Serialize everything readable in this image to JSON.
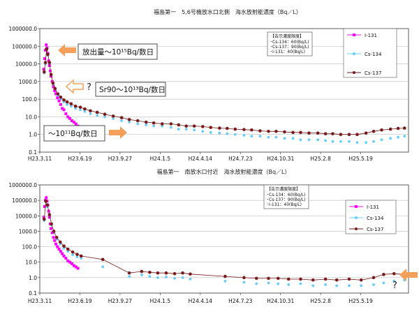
{
  "chart_data": [
    {
      "type": "scatter",
      "title": "福島第一　5,6号機放水口北側　海水放射能濃度（Bq／L）",
      "yscale": "log",
      "ylim": [
        0.1,
        1000000.0
      ],
      "y_ticks": [
        "1000000.0",
        "100000.0",
        "10000.0",
        "1000.0",
        "100.0",
        "10.0",
        "1.0",
        "0.1"
      ],
      "xlim": [
        "2011-03-11",
        "2013-09-15"
      ],
      "x_ticks": [
        {
          "label": "H23.3.11",
          "date": "2011-03-11"
        },
        {
          "label": "H23.6.19",
          "date": "2011-06-19"
        },
        {
          "label": "H23.9.27",
          "date": "2011-09-27"
        },
        {
          "label": "H24.1.5",
          "date": "2012-01-05"
        },
        {
          "label": "H24.4.14",
          "date": "2012-04-14"
        },
        {
          "label": "H24.7.23",
          "date": "2012-07-23"
        },
        {
          "label": "H24.10.31",
          "date": "2012-10-31"
        },
        {
          "label": "H25.2.8",
          "date": "2013-02-08"
        },
        {
          "label": "H25.5.19",
          "date": "2013-05-19"
        }
      ],
      "grid": "horizontal",
      "legend": {
        "position": "top-right",
        "entries": [
          "I-131",
          "Cs-134",
          "Cs-137"
        ]
      },
      "limits_box": {
        "title": "【告示濃度限度】",
        "lines": [
          "･Cs-134：60(Bq/L)",
          "･Cs-137：90(Bq/L)",
          "･I-131：40(Bq/L)"
        ]
      },
      "annotations": [
        {
          "text": "放出量～10¹⁵Bq/数日",
          "arrow": "orange-left"
        },
        {
          "text": "Sr90～10¹³Bq/数日",
          "arrow": "outline-left",
          "question": "?"
        },
        {
          "text": "～10¹¹Bq/数日",
          "arrow": "orange-right"
        }
      ],
      "series": [
        {
          "name": "I-131",
          "color": "#ff00ff",
          "marker": "square",
          "x": [
            "2011-03-21",
            "2011-03-23",
            "2011-03-25",
            "2011-03-27",
            "2011-03-29",
            "2011-03-31",
            "2011-04-02",
            "2011-04-04",
            "2011-04-06",
            "2011-04-08",
            "2011-04-11",
            "2011-04-14",
            "2011-04-17",
            "2011-04-20",
            "2011-04-24",
            "2011-04-28",
            "2011-05-02",
            "2011-05-06",
            "2011-05-10",
            "2011-05-15",
            "2011-05-20",
            "2011-05-25",
            "2011-05-30",
            "2011-06-04",
            "2011-06-09",
            "2011-06-14"
          ],
          "y": [
            5000,
            20000,
            60000,
            120000,
            80000,
            40000,
            15000,
            8000,
            4000,
            2000,
            1000,
            500,
            300,
            200,
            120,
            80,
            50,
            30,
            25,
            15,
            10,
            8,
            6,
            5,
            4,
            3
          ]
        },
        {
          "name": "Cs-134",
          "color": "#66ccff",
          "marker": "circle",
          "x": [
            "2011-03-22",
            "2011-03-25",
            "2011-03-28",
            "2011-03-31",
            "2011-04-04",
            "2011-04-08",
            "2011-04-13",
            "2011-04-18",
            "2011-04-25",
            "2011-05-02",
            "2011-05-10",
            "2011-05-18",
            "2011-05-28",
            "2011-06-08",
            "2011-06-20",
            "2011-07-01",
            "2011-07-15",
            "2011-08-01",
            "2011-08-20",
            "2011-09-10",
            "2011-10-01",
            "2011-10-20",
            "2011-11-10",
            "2011-12-01",
            "2011-12-20",
            "2012-01-10",
            "2012-02-01",
            "2012-02-20",
            "2012-03-10",
            "2012-03-30",
            "2012-04-20",
            "2012-05-10",
            "2012-06-01",
            "2012-06-20",
            "2012-07-10",
            "2012-08-01",
            "2012-08-20",
            "2012-09-10",
            "2012-10-01",
            "2012-10-20",
            "2012-11-10",
            "2012-12-01",
            "2012-12-20",
            "2013-01-10",
            "2013-02-01",
            "2013-02-20",
            "2013-03-10",
            "2013-03-30",
            "2013-04-20",
            "2013-05-10",
            "2013-06-01",
            "2013-06-20",
            "2013-07-10",
            "2013-08-01",
            "2013-08-20",
            "2013-09-05"
          ],
          "y": [
            3000,
            10000,
            60000,
            30000,
            10000,
            2000,
            600,
            300,
            150,
            100,
            70,
            50,
            40,
            30,
            25,
            20,
            15,
            12,
            10,
            8,
            6,
            5,
            4,
            3.5,
            3,
            3,
            2.5,
            2,
            2,
            1.8,
            1.5,
            1.3,
            1.2,
            1.1,
            1,
            0.9,
            0.8,
            0.8,
            0.7,
            0.7,
            0.6,
            0.6,
            0.5,
            0.5,
            0.5,
            0.45,
            0.4,
            0.4,
            0.4,
            0.35,
            0.35,
            0.4,
            0.5,
            0.6,
            0.7,
            0.8
          ]
        },
        {
          "name": "Cs-137",
          "color": "#7a1a1a",
          "marker": "circle",
          "x": [
            "2011-03-22",
            "2011-03-25",
            "2011-03-28",
            "2011-03-31",
            "2011-04-04",
            "2011-04-08",
            "2011-04-13",
            "2011-04-18",
            "2011-04-25",
            "2011-05-02",
            "2011-05-10",
            "2011-05-18",
            "2011-05-28",
            "2011-06-08",
            "2011-06-20",
            "2011-07-01",
            "2011-07-15",
            "2011-08-01",
            "2011-08-20",
            "2011-09-10",
            "2011-10-01",
            "2011-10-20",
            "2011-11-10",
            "2011-12-01",
            "2011-12-20",
            "2012-01-10",
            "2012-02-01",
            "2012-02-20",
            "2012-03-10",
            "2012-03-30",
            "2012-04-20",
            "2012-05-10",
            "2012-06-01",
            "2012-06-20",
            "2012-07-10",
            "2012-08-01",
            "2012-08-20",
            "2012-09-10",
            "2012-10-01",
            "2012-10-20",
            "2012-11-10",
            "2012-12-01",
            "2012-12-20",
            "2013-01-10",
            "2013-02-01",
            "2013-02-20",
            "2013-03-10",
            "2013-03-30",
            "2013-04-20",
            "2013-05-10",
            "2013-06-01",
            "2013-06-20",
            "2013-07-10",
            "2013-08-01",
            "2013-08-20",
            "2013-09-05"
          ],
          "y": [
            3500,
            12000,
            70000,
            35000,
            12000,
            2500,
            800,
            400,
            200,
            130,
            90,
            70,
            55,
            40,
            35,
            28,
            22,
            18,
            14,
            11,
            9,
            7,
            6,
            5,
            4.5,
            4,
            4,
            3.5,
            3,
            3,
            2.8,
            2.5,
            2.3,
            2.2,
            2,
            1.9,
            1.8,
            1.6,
            1.5,
            1.5,
            1.4,
            1.3,
            1.3,
            1.2,
            1.2,
            1.1,
            1.1,
            1,
            1,
            1,
            1.2,
            1.5,
            1.8,
            2,
            2.2,
            2.3
          ]
        }
      ]
    },
    {
      "type": "scatter",
      "title": "福島第一　南放水口付近　海水放射能濃度（Bq／L）",
      "yscale": "log",
      "ylim": [
        0.1,
        1000000.0
      ],
      "y_ticks": [
        "1000000.0",
        "100000.0",
        "10000.0",
        "1000.0",
        "100.0",
        "10.0",
        "1.0",
        "0.1"
      ],
      "xlim": [
        "2011-03-11",
        "2013-09-15"
      ],
      "x_ticks": [
        {
          "label": "H23.3.11",
          "date": "2011-03-11"
        },
        {
          "label": "H23.6.19",
          "date": "2011-06-19"
        },
        {
          "label": "H23.9.27",
          "date": "2011-09-27"
        },
        {
          "label": "H24.1.5",
          "date": "2012-01-05"
        },
        {
          "label": "H24.4.14",
          "date": "2012-04-14"
        },
        {
          "label": "H24.7.23",
          "date": "2012-07-23"
        },
        {
          "label": "H24.10.31",
          "date": "2012-10-31"
        },
        {
          "label": "H25.2.8",
          "date": "2013-02-08"
        },
        {
          "label": "H25.5.19",
          "date": "2013-05-19"
        }
      ],
      "grid": "horizontal",
      "legend": {
        "position": "top-right",
        "entries": [
          "I-131",
          "Cs-134",
          "Cs-137"
        ]
      },
      "limits_box": {
        "title": "【告示濃度限度】",
        "lines": [
          "･Cs-134：60(Bq/L)",
          "･Cs-137：90(Bq/L)",
          "･I-131：40(Bq/L)"
        ]
      },
      "annotations": [
        {
          "text": "",
          "arrow": "orange-left",
          "question": "?"
        }
      ],
      "series": [
        {
          "name": "I-131",
          "color": "#ff00ff",
          "marker": "square",
          "x": [
            "2011-03-21",
            "2011-03-23",
            "2011-03-25",
            "2011-03-27",
            "2011-03-29",
            "2011-03-31",
            "2011-04-02",
            "2011-04-04",
            "2011-04-06",
            "2011-04-08",
            "2011-04-11",
            "2011-04-14",
            "2011-04-17",
            "2011-04-20",
            "2011-04-24",
            "2011-04-28",
            "2011-05-02",
            "2011-05-06",
            "2011-05-10",
            "2011-05-15",
            "2011-05-20",
            "2011-05-25",
            "2011-05-30",
            "2011-06-04",
            "2011-06-09",
            "2011-06-14"
          ],
          "y": [
            8000,
            40000,
            100000,
            150000,
            90000,
            50000,
            20000,
            8000,
            3000,
            1500,
            800,
            400,
            250,
            150,
            100,
            70,
            50,
            35,
            25,
            18,
            12,
            10,
            8,
            6,
            5,
            4
          ]
        },
        {
          "name": "Cs-134",
          "color": "#66ccff",
          "marker": "circle",
          "x": [
            "2011-03-22",
            "2011-03-26",
            "2011-03-30",
            "2011-04-04",
            "2011-04-09",
            "2011-04-15",
            "2011-04-22",
            "2011-05-01",
            "2011-05-10",
            "2011-05-20",
            "2011-06-01",
            "2011-06-12",
            "2011-06-22",
            "2011-08-15",
            "2011-10-20",
            "2011-11-20",
            "2011-12-10",
            "2011-12-30",
            "2012-01-20",
            "2012-02-10",
            "2012-03-01",
            "2012-03-20",
            "2012-06-15",
            "2012-08-01",
            "2012-09-01",
            "2012-10-01",
            "2012-10-25",
            "2012-11-20",
            "2012-12-20",
            "2013-01-20",
            "2013-02-20",
            "2013-03-20",
            "2013-04-20",
            "2013-05-20",
            "2013-06-20",
            "2013-07-15",
            "2013-08-10",
            "2013-09-05"
          ],
          "y": [
            5000,
            80000,
            40000,
            10000,
            2500,
            800,
            300,
            150,
            80,
            50,
            30,
            22,
            18,
            5,
            1.2,
            1.5,
            1.2,
            1,
            1.1,
            0.9,
            1,
            0.8,
            0.6,
            0.5,
            0.4,
            0.45,
            0.4,
            0.35,
            0.4,
            0.3,
            0.35,
            0.3,
            0.3,
            0.3,
            0.35,
            0.45,
            0.6,
            0.7
          ]
        },
        {
          "name": "Cs-137",
          "color": "#7a1a1a",
          "marker": "circle",
          "x": [
            "2011-03-22",
            "2011-03-26",
            "2011-03-30",
            "2011-04-04",
            "2011-04-09",
            "2011-04-15",
            "2011-04-22",
            "2011-05-01",
            "2011-05-10",
            "2011-05-20",
            "2011-06-01",
            "2011-06-12",
            "2011-06-22",
            "2011-08-15",
            "2011-10-20",
            "2011-11-20",
            "2011-12-10",
            "2011-12-30",
            "2012-01-20",
            "2012-02-10",
            "2012-03-01",
            "2012-03-20",
            "2012-06-15",
            "2012-08-01",
            "2012-09-01",
            "2012-10-01",
            "2012-10-25",
            "2012-11-20",
            "2012-12-20",
            "2013-01-20",
            "2013-02-20",
            "2013-03-20",
            "2013-04-20",
            "2013-05-20",
            "2013-06-20",
            "2013-07-15",
            "2013-08-10",
            "2013-09-05"
          ],
          "y": [
            6000,
            90000,
            50000,
            12000,
            3000,
            1000,
            400,
            200,
            110,
            70,
            45,
            32,
            25,
            15,
            2,
            2.5,
            2.2,
            2,
            2,
            1.8,
            2,
            1.7,
            1.2,
            1,
            0.9,
            0.9,
            0.9,
            0.8,
            0.8,
            0.7,
            0.8,
            0.7,
            0.8,
            0.7,
            1,
            1.6,
            1.8,
            1.6
          ]
        }
      ]
    }
  ]
}
